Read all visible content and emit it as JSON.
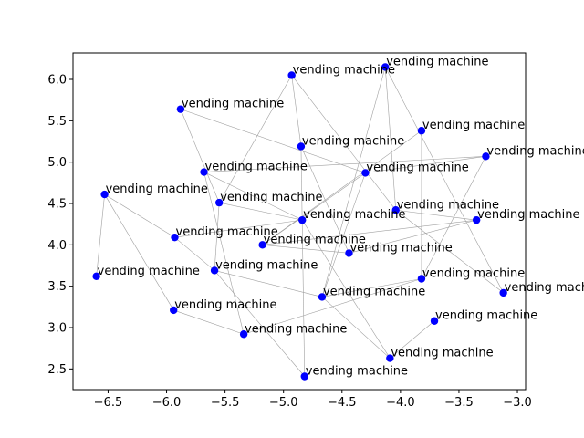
{
  "chart_data": {
    "type": "scatter",
    "title": "",
    "xlabel": "",
    "ylabel": "",
    "xlim": [
      -6.8,
      -2.93
    ],
    "ylim": [
      2.25,
      6.32
    ],
    "xticks": [
      -6.5,
      -6.0,
      -5.5,
      -5.0,
      -4.5,
      -4.0,
      -3.5,
      -3.0
    ],
    "xtick_labels": [
      "−6.5",
      "−6.0",
      "−5.5",
      "−5.0",
      "−4.5",
      "−4.0",
      "−3.5",
      "−3.0"
    ],
    "yticks": [
      2.5,
      3.0,
      3.5,
      4.0,
      4.5,
      5.0,
      5.5,
      6.0
    ],
    "ytick_labels": [
      "2.5",
      "3.0",
      "3.5",
      "4.0",
      "4.5",
      "5.0",
      "5.5",
      "6.0"
    ],
    "grid": false,
    "point_color": "#0000ff",
    "edge_color": "#a0a0a0",
    "points": [
      {
        "x": -4.13,
        "y": 6.15,
        "label": "vending machine"
      },
      {
        "x": -4.93,
        "y": 6.05,
        "label": "vending machine"
      },
      {
        "x": -5.88,
        "y": 5.64,
        "label": "vending machine"
      },
      {
        "x": -3.82,
        "y": 5.38,
        "label": "vending machine"
      },
      {
        "x": -4.85,
        "y": 5.19,
        "label": "vending machine"
      },
      {
        "x": -3.27,
        "y": 5.07,
        "label": "vending machine"
      },
      {
        "x": -5.68,
        "y": 4.88,
        "label": "vending machine"
      },
      {
        "x": -4.3,
        "y": 4.87,
        "label": "vending machine"
      },
      {
        "x": -6.53,
        "y": 4.61,
        "label": "vending machine"
      },
      {
        "x": -5.55,
        "y": 4.51,
        "label": "vending machine"
      },
      {
        "x": -4.04,
        "y": 4.42,
        "label": "vending machine"
      },
      {
        "x": -4.84,
        "y": 4.3,
        "label": "vending machine"
      },
      {
        "x": -3.35,
        "y": 4.3,
        "label": "vending machine"
      },
      {
        "x": -5.93,
        "y": 4.09,
        "label": "vending machine"
      },
      {
        "x": -5.18,
        "y": 4.0,
        "label": "vending machine"
      },
      {
        "x": -4.44,
        "y": 3.9,
        "label": "vending machine"
      },
      {
        "x": -5.59,
        "y": 3.69,
        "label": "vending machine"
      },
      {
        "x": -6.6,
        "y": 3.62,
        "label": "vending machine"
      },
      {
        "x": -3.82,
        "y": 3.59,
        "label": "vending machine"
      },
      {
        "x": -3.12,
        "y": 3.42,
        "label": "vending machine"
      },
      {
        "x": -4.67,
        "y": 3.37,
        "label": "vending machine"
      },
      {
        "x": -5.94,
        "y": 3.21,
        "label": "vending machine"
      },
      {
        "x": -3.71,
        "y": 3.08,
        "label": "vending machine"
      },
      {
        "x": -5.34,
        "y": 2.92,
        "label": "vending machine"
      },
      {
        "x": -4.09,
        "y": 2.63,
        "label": "vending machine"
      },
      {
        "x": -4.82,
        "y": 2.41,
        "label": "vending machine"
      }
    ],
    "edges": [
      [
        0,
        10
      ],
      [
        0,
        20
      ],
      [
        0,
        19
      ],
      [
        1,
        9
      ],
      [
        1,
        4
      ],
      [
        1,
        10
      ],
      [
        2,
        7
      ],
      [
        2,
        9
      ],
      [
        3,
        18
      ],
      [
        3,
        14
      ],
      [
        4,
        25
      ],
      [
        4,
        15
      ],
      [
        5,
        7
      ],
      [
        5,
        6
      ],
      [
        5,
        18
      ],
      [
        6,
        23
      ],
      [
        6,
        11
      ],
      [
        7,
        20
      ],
      [
        7,
        14
      ],
      [
        8,
        13
      ],
      [
        8,
        21
      ],
      [
        8,
        17
      ],
      [
        9,
        11
      ],
      [
        9,
        16
      ],
      [
        10,
        12
      ],
      [
        10,
        19
      ],
      [
        11,
        24
      ],
      [
        11,
        13
      ],
      [
        12,
        14
      ],
      [
        13,
        16
      ],
      [
        14,
        15
      ],
      [
        15,
        12
      ],
      [
        16,
        25
      ],
      [
        16,
        20
      ],
      [
        18,
        23
      ],
      [
        18,
        20
      ],
      [
        20,
        24
      ],
      [
        21,
        23
      ],
      [
        22,
        24
      ]
    ]
  }
}
